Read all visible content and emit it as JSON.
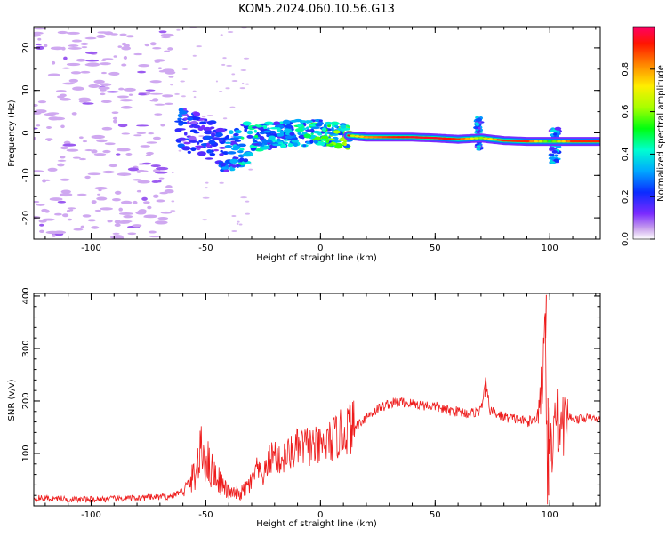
{
  "title": "KOM5.2024.060.10.56.G13",
  "colors": {
    "snr_line": "#ee1c1c",
    "axes": "#000000",
    "spectrogram_weak": "#c9a2ec",
    "spectrogram_mid": "#5a1aff",
    "spectrogram_strong": "#ff2200"
  },
  "chart_data": [
    {
      "type": "heatmap",
      "xlabel": "Height of straight line (km)",
      "ylabel": "Frequency (Hz)",
      "xlim": [
        -125,
        122
      ],
      "ylim": [
        -25,
        25
      ],
      "xticks": [
        -100,
        -50,
        0,
        50,
        100
      ],
      "yticks": [
        -20,
        -10,
        0,
        10,
        20
      ],
      "colorbar": {
        "label": "Normalized spectral amplitude",
        "ticks": [
          0.0,
          0.2,
          0.4,
          0.6,
          0.8
        ],
        "range": [
          0,
          1
        ],
        "colormap": "gist_rainbow"
      },
      "ridge": {
        "description": "Dominant Doppler line vs height",
        "x": [
          -62,
          -55,
          -45,
          -40,
          -30,
          -20,
          -10,
          0,
          10,
          20,
          30,
          40,
          50,
          60,
          70,
          80,
          90,
          100,
          110,
          122
        ],
        "y": [
          1.0,
          0.0,
          -3.0,
          -5.0,
          -1.5,
          -0.5,
          0.0,
          0.0,
          -0.5,
          -1.0,
          -1.0,
          -1.0,
          -1.2,
          -1.5,
          -1.2,
          -1.8,
          -2.0,
          -2.0,
          -2.0,
          -2.0
        ],
        "amplitude": [
          0.25,
          0.2,
          0.22,
          0.3,
          0.45,
          0.35,
          0.4,
          0.5,
          0.55,
          0.8,
          0.9,
          0.95,
          0.95,
          0.9,
          0.6,
          0.9,
          0.9,
          0.5,
          0.9,
          0.9
        ]
      },
      "noise_region": {
        "x_range": [
          -125,
          -65
        ],
        "y_range": [
          -25,
          25
        ],
        "amplitude": 0.05
      }
    },
    {
      "type": "line",
      "xlabel": "Height of straight line (km)",
      "ylabel": "SNR (v/v)",
      "xlim": [
        -125,
        122
      ],
      "ylim": [
        0,
        405
      ],
      "xticks": [
        -100,
        -50,
        0,
        50,
        100
      ],
      "yticks": [
        100,
        200,
        300,
        400
      ],
      "series": [
        {
          "x": [
            -125,
            -115,
            -105,
            -95,
            -85,
            -75,
            -65,
            -58,
            -55,
            -52,
            -50,
            -48,
            -45,
            -42,
            -40,
            -35,
            -30,
            -28,
            -25,
            -22,
            -20,
            -18,
            -15,
            -10,
            -5,
            0,
            5,
            10,
            12,
            15,
            20,
            25,
            30,
            35,
            40,
            45,
            50,
            55,
            60,
            65,
            70,
            72,
            74,
            78,
            82,
            86,
            90,
            94,
            97,
            98,
            99,
            100,
            101,
            102,
            104,
            108,
            112,
            116,
            122
          ],
          "y": [
            15,
            14,
            12,
            13,
            14,
            16,
            18,
            35,
            60,
            100,
            95,
            70,
            55,
            35,
            25,
            22,
            45,
            70,
            55,
            90,
            100,
            85,
            95,
            110,
            115,
            110,
            125,
            140,
            150,
            150,
            170,
            185,
            195,
            198,
            195,
            192,
            190,
            182,
            180,
            176,
            182,
            235,
            182,
            172,
            168,
            165,
            160,
            165,
            250,
            390,
            20,
            150,
            90,
            210,
            140,
            170,
            165,
            168,
            165
          ]
        }
      ]
    }
  ]
}
